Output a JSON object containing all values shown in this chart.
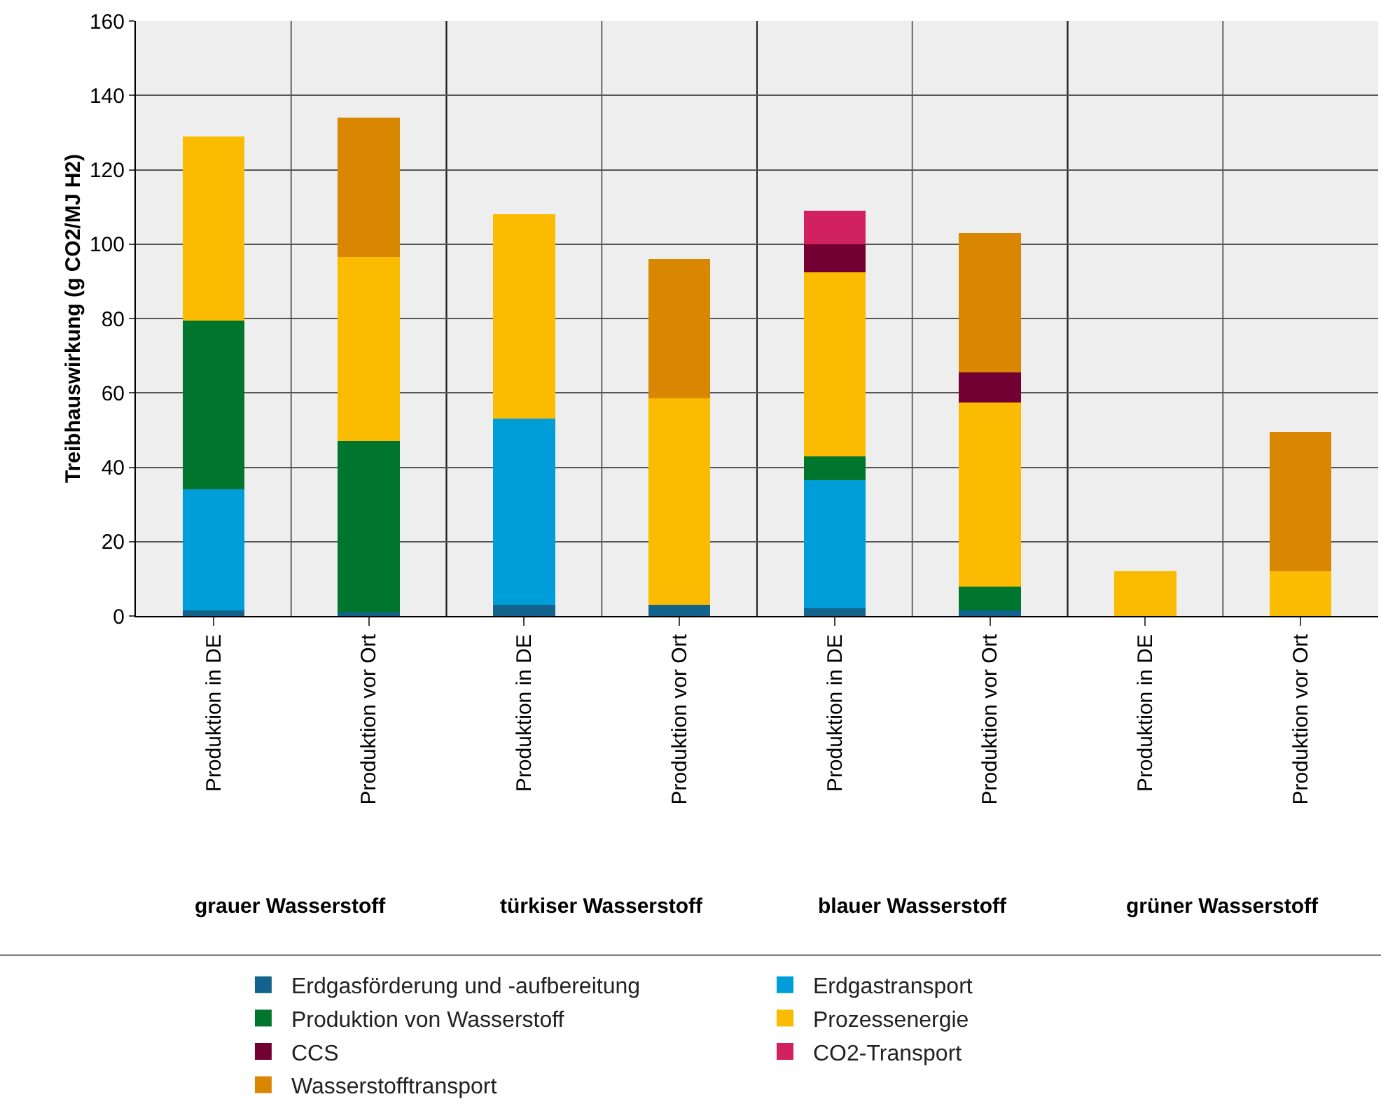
{
  "chart_data": {
    "type": "bar",
    "stacked": true,
    "ylabel": "Treibhauswirkung (g CO2/MJ H2)",
    "categories": [
      "Produktion in DE",
      "Produktion vor Ort",
      "Produktion in DE",
      "Produktion vor Ort",
      "Produktion in DE",
      "Produktion vor Ort",
      "Produktion in DE",
      "Produktion vor Ort"
    ],
    "annotations": [
      "grauer Wasserstoff",
      "türkiser Wasserstoff",
      "blauer Wasserstoff",
      "grüner Wasserstoff"
    ],
    "series": [
      {
        "name": "Erdgasförderung und -aufbereitung",
        "color": "#14638c",
        "values": [
          1.5,
          1,
          3,
          3,
          2,
          1.5,
          null,
          null
        ]
      },
      {
        "name": "Erdgastransport",
        "color": "#009ed8",
        "values": [
          32.5,
          null,
          50,
          null,
          34.5,
          null,
          null,
          null
        ]
      },
      {
        "name": "Produktion von Wasserstoff",
        "color": "#00752d",
        "values": [
          45.5,
          46,
          null,
          null,
          6.5,
          6.5,
          null,
          null
        ]
      },
      {
        "name": "Prozessenergie",
        "color": "#fabb00",
        "values": [
          49.5,
          49.5,
          55,
          55.5,
          49.5,
          49.5,
          12,
          12
        ]
      },
      {
        "name": "CCS",
        "color": "#730033",
        "values": [
          null,
          null,
          null,
          null,
          7.5,
          8,
          null,
          null
        ]
      },
      {
        "name": "CO2-Transport",
        "color": "#d2215f",
        "values": [
          null,
          null,
          null,
          null,
          9,
          null,
          null,
          null
        ]
      },
      {
        "name": "Wasserstofftransport",
        "color": "#d98700",
        "values": [
          null,
          37.5,
          null,
          37.5,
          null,
          37.5,
          null,
          37.5
        ]
      }
    ],
    "ylim": [
      0,
      160
    ],
    "yticks": [
      0,
      20,
      40,
      60,
      80,
      100,
      120,
      140,
      160
    ],
    "grid": true,
    "legend": "bottom"
  }
}
